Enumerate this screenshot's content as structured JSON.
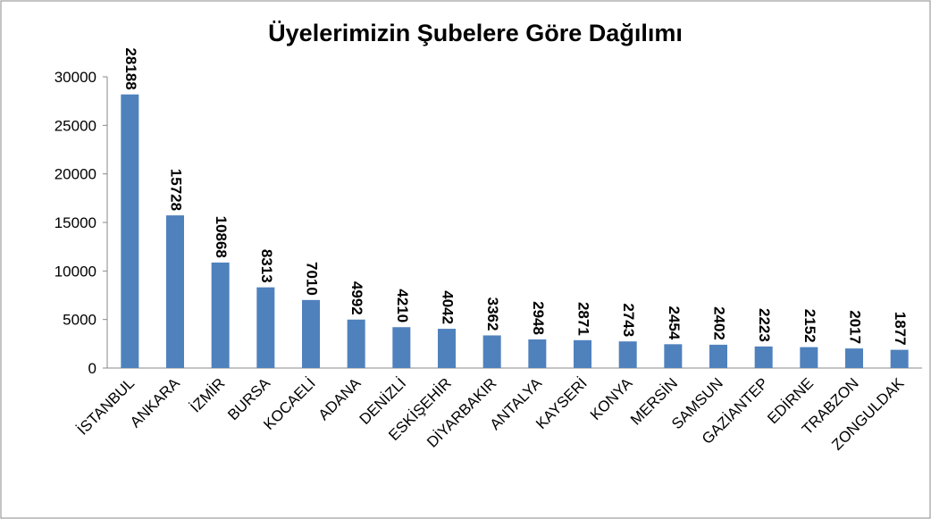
{
  "chart_data": {
    "type": "bar",
    "title": "Üyelerimizin Şubelere Göre Dağılımı",
    "categories": [
      "İSTANBUL",
      "ANKARA",
      "İZMİR",
      "BURSA",
      "KOCAELİ",
      "ADANA",
      "DENİZLİ",
      "ESKİŞEHİR",
      "DİYARBAKIR",
      "ANTALYA",
      "KAYSERİ",
      "KONYA",
      "MERSİN",
      "SAMSUN",
      "GAZİANTEP",
      "EDİRNE",
      "TRABZON",
      "ZONGULDAK"
    ],
    "values": [
      28188,
      15728,
      10868,
      8313,
      7010,
      4992,
      4210,
      4042,
      3362,
      2948,
      2871,
      2743,
      2454,
      2402,
      2223,
      2152,
      2017,
      1877
    ],
    "color": "#4f81bd",
    "ylim": [
      0,
      30000
    ],
    "yticks": [
      0,
      5000,
      10000,
      15000,
      20000,
      25000,
      30000
    ],
    "grid": false
  }
}
